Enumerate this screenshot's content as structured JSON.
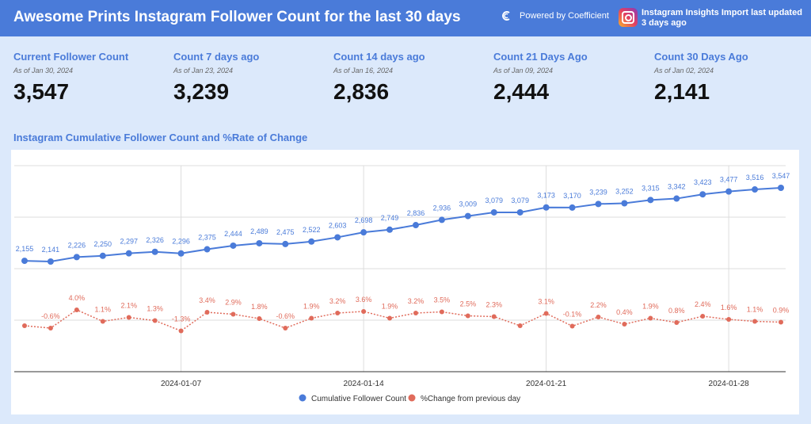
{
  "header": {
    "title": "Awesome Prints Instagram Follower Count for the last 30 days",
    "powered": "Powered by Coefficient",
    "insights": "Instagram Insights Import last updated 3 days ago"
  },
  "kpis": [
    {
      "label": "Current Follower Count",
      "asof": "As of Jan 30, 2024",
      "value": "3,547"
    },
    {
      "label": "Count 7 days ago",
      "asof": "As of Jan 23, 2024",
      "value": "3,239"
    },
    {
      "label": "Count 14 days ago",
      "asof": "As of Jan 16, 2024",
      "value": "2,836"
    },
    {
      "label": "Count 21 Days Ago",
      "asof": "As of Jan 09, 2024",
      "value": "2,444"
    },
    {
      "label": "Count 30 Days Ago",
      "asof": "As of Jan 02, 2024",
      "value": "2,141"
    }
  ],
  "chart_data": {
    "type": "line",
    "title": "Instagram Cumulative Follower Count and %Rate of Change",
    "x_ticks": [
      "2024-01-07",
      "2024-01-14",
      "2024-01-21",
      "2024-01-28"
    ],
    "grid": true,
    "legend": "bottom",
    "series": [
      {
        "name": "Cumulative Follower Count",
        "color": "#4a7bd9",
        "values": [
          2155,
          2141,
          2226,
          2250,
          2297,
          2326,
          2296,
          2375,
          2444,
          2489,
          2475,
          2522,
          2603,
          2698,
          2749,
          2836,
          2936,
          3009,
          3079,
          3079,
          3173,
          3170,
          3239,
          3252,
          3315,
          3342,
          3423,
          3477,
          3516,
          3547
        ],
        "labels": [
          "2,155",
          "2,141",
          "2,226",
          "2,250",
          "2,297",
          "2,326",
          "2,296",
          "2,375",
          "2,444",
          "2,489",
          "2,475",
          "2,522",
          "2,603",
          "2,698",
          "2,749",
          "2,836",
          "2,936",
          "3,009",
          "3,079",
          "3,079",
          "3,173",
          "3,170",
          "3,239",
          "3,252",
          "3,315",
          "3,342",
          "3,423",
          "3,477",
          "3,516",
          "3,547"
        ]
      },
      {
        "name": "%Change from previous day",
        "color": "#e06b5b",
        "values": [
          null,
          -0.6,
          4.0,
          1.1,
          2.1,
          1.3,
          -1.3,
          3.4,
          2.9,
          1.8,
          -0.6,
          1.9,
          3.2,
          3.6,
          1.9,
          3.2,
          3.5,
          2.5,
          2.3,
          null,
          3.1,
          -0.1,
          2.2,
          0.4,
          1.9,
          0.8,
          2.4,
          1.6,
          1.1,
          0.9
        ],
        "labels": [
          "",
          "-0.6%",
          "4.0%",
          "1.1%",
          "2.1%",
          "1.3%",
          "-1.3%",
          "3.4%",
          "2.9%",
          "1.8%",
          "-0.6%",
          "1.9%",
          "3.2%",
          "3.6%",
          "1.9%",
          "3.2%",
          "3.5%",
          "2.5%",
          "2.3%",
          "",
          "3.1%",
          "-0.1%",
          "2.2%",
          "0.4%",
          "1.9%",
          "0.8%",
          "2.4%",
          "1.6%",
          "1.1%",
          "0.9%"
        ]
      }
    ]
  }
}
